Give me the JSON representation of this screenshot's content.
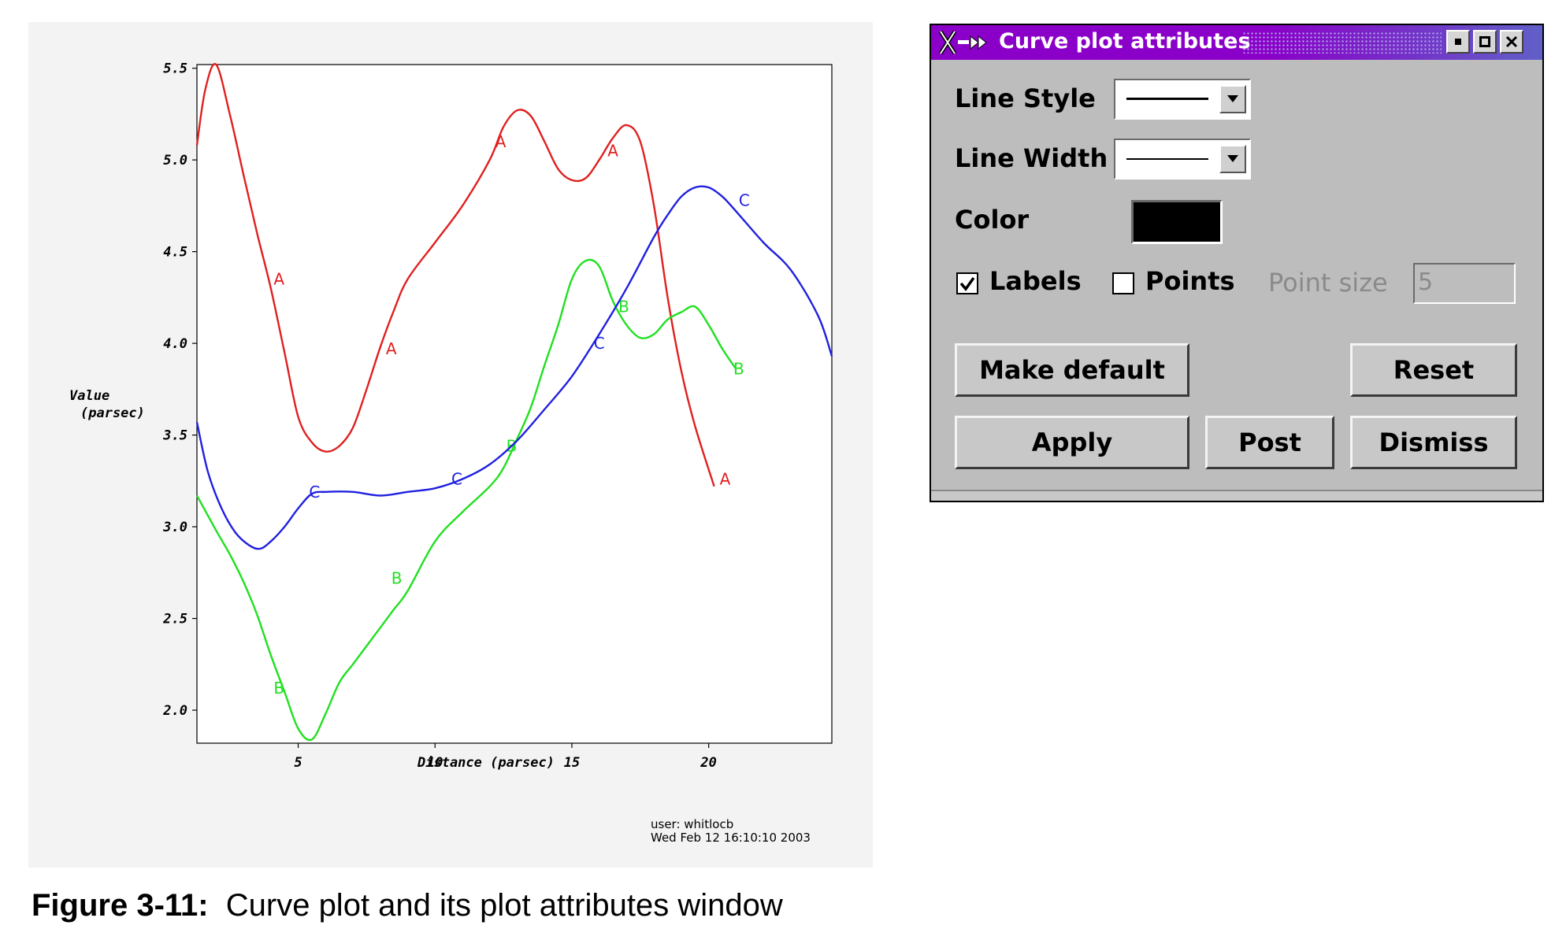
{
  "plot": {
    "footer_user": "user: whitlocb",
    "footer_date": "Wed Feb 12 16:10:10 2003"
  },
  "chart_data": {
    "type": "line",
    "title": "",
    "xlabel": "Distance (parsec)",
    "ylabel": [
      "Value",
      "(parsec)"
    ],
    "xlim": [
      1.3,
      24.5
    ],
    "ylim": [
      1.82,
      5.52
    ],
    "xticks": [
      5,
      10,
      15,
      20
    ],
    "yticks": [
      2.0,
      2.5,
      3.0,
      3.5,
      4.0,
      4.5,
      5.0,
      5.5
    ],
    "xtick_labels": [
      "5",
      "10",
      "15",
      "20"
    ],
    "ytick_labels": [
      "2.0",
      "2.5",
      "3.0",
      "3.5",
      "4.0",
      "4.5",
      "5.0",
      "5.5"
    ],
    "grid": false,
    "series": [
      {
        "name": "A",
        "color": "#e02020",
        "x": [
          1.3,
          1.6,
          2.0,
          2.5,
          3.0,
          3.5,
          4.0,
          4.5,
          5.0,
          5.5,
          6.0,
          6.5,
          7.0,
          7.5,
          8.0,
          8.5,
          9.0,
          10.0,
          11.0,
          12.0,
          12.5,
          13.0,
          13.5,
          14.0,
          14.5,
          15.0,
          15.5,
          16.0,
          16.5,
          17.0,
          17.5,
          18.0,
          18.5,
          19.0,
          19.5,
          20.2
        ],
        "y": [
          5.08,
          5.38,
          5.52,
          5.25,
          4.92,
          4.6,
          4.3,
          3.95,
          3.6,
          3.46,
          3.41,
          3.44,
          3.54,
          3.75,
          3.98,
          4.18,
          4.35,
          4.55,
          4.75,
          5.0,
          5.18,
          5.27,
          5.24,
          5.1,
          4.95,
          4.89,
          4.9,
          5.0,
          5.12,
          5.19,
          5.1,
          4.75,
          4.25,
          3.85,
          3.55,
          3.22
        ],
        "labels_at": [
          [
            4.3,
            4.35
          ],
          [
            8.4,
            3.97
          ],
          [
            12.4,
            5.1
          ],
          [
            16.5,
            5.05
          ],
          [
            20.6,
            3.26
          ]
        ]
      },
      {
        "name": "B",
        "color": "#20e020",
        "x": [
          1.3,
          2.0,
          2.5,
          3.0,
          3.5,
          4.0,
          4.5,
          5.0,
          5.5,
          6.0,
          6.5,
          7.0,
          7.5,
          8.0,
          8.5,
          9.0,
          10.0,
          11.0,
          12.0,
          12.5,
          13.0,
          13.5,
          14.0,
          14.5,
          15.0,
          15.5,
          16.0,
          16.5,
          17.0,
          17.5,
          18.0,
          18.5,
          19.0,
          19.5,
          20.0,
          20.5,
          21.0
        ],
        "y": [
          3.17,
          2.98,
          2.85,
          2.7,
          2.52,
          2.3,
          2.1,
          1.9,
          1.84,
          1.98,
          2.15,
          2.25,
          2.35,
          2.45,
          2.55,
          2.65,
          2.92,
          3.08,
          3.22,
          3.32,
          3.48,
          3.65,
          3.88,
          4.1,
          4.35,
          4.45,
          4.42,
          4.23,
          4.1,
          4.03,
          4.05,
          4.13,
          4.17,
          4.2,
          4.1,
          3.97,
          3.86
        ],
        "labels_at": [
          [
            4.3,
            2.12
          ],
          [
            8.6,
            2.72
          ],
          [
            12.8,
            3.44
          ],
          [
            16.9,
            4.2
          ],
          [
            21.1,
            3.86
          ]
        ]
      },
      {
        "name": "C",
        "color": "#2020e0",
        "x": [
          1.3,
          1.7,
          2.2,
          2.7,
          3.2,
          3.6,
          4.0,
          4.5,
          5.0,
          5.5,
          6.0,
          7.0,
          8.0,
          9.0,
          10.0,
          11.0,
          12.0,
          13.0,
          14.0,
          15.0,
          16.0,
          17.0,
          18.0,
          18.5,
          19.0,
          19.5,
          20.0,
          20.5,
          21.0,
          22.0,
          23.0,
          24.0,
          24.5
        ],
        "y": [
          3.57,
          3.3,
          3.1,
          2.97,
          2.9,
          2.88,
          2.92,
          3.0,
          3.1,
          3.18,
          3.19,
          3.19,
          3.17,
          3.19,
          3.21,
          3.26,
          3.34,
          3.47,
          3.64,
          3.82,
          4.05,
          4.3,
          4.58,
          4.7,
          4.8,
          4.85,
          4.85,
          4.8,
          4.72,
          4.55,
          4.4,
          4.15,
          3.93
        ],
        "labels_at": [
          [
            5.6,
            3.19
          ],
          [
            10.8,
            3.26
          ],
          [
            16.0,
            4.0
          ],
          [
            21.3,
            4.78
          ]
        ]
      }
    ]
  },
  "dialog": {
    "title": "Curve plot attributes",
    "line_style_label": "Line Style",
    "line_width_label": "Line Width",
    "color_label": "Color",
    "color_value": "#000000",
    "labels_checkbox": "Labels",
    "labels_checked": true,
    "points_checkbox": "Points",
    "points_checked": false,
    "point_size_label": "Point size",
    "point_size_value": "5",
    "make_default": "Make default",
    "reset": "Reset",
    "apply": "Apply",
    "post": "Post",
    "dismiss": "Dismiss"
  },
  "caption": {
    "number": "Figure 3-11:",
    "text": "Curve plot and its plot attributes window"
  }
}
